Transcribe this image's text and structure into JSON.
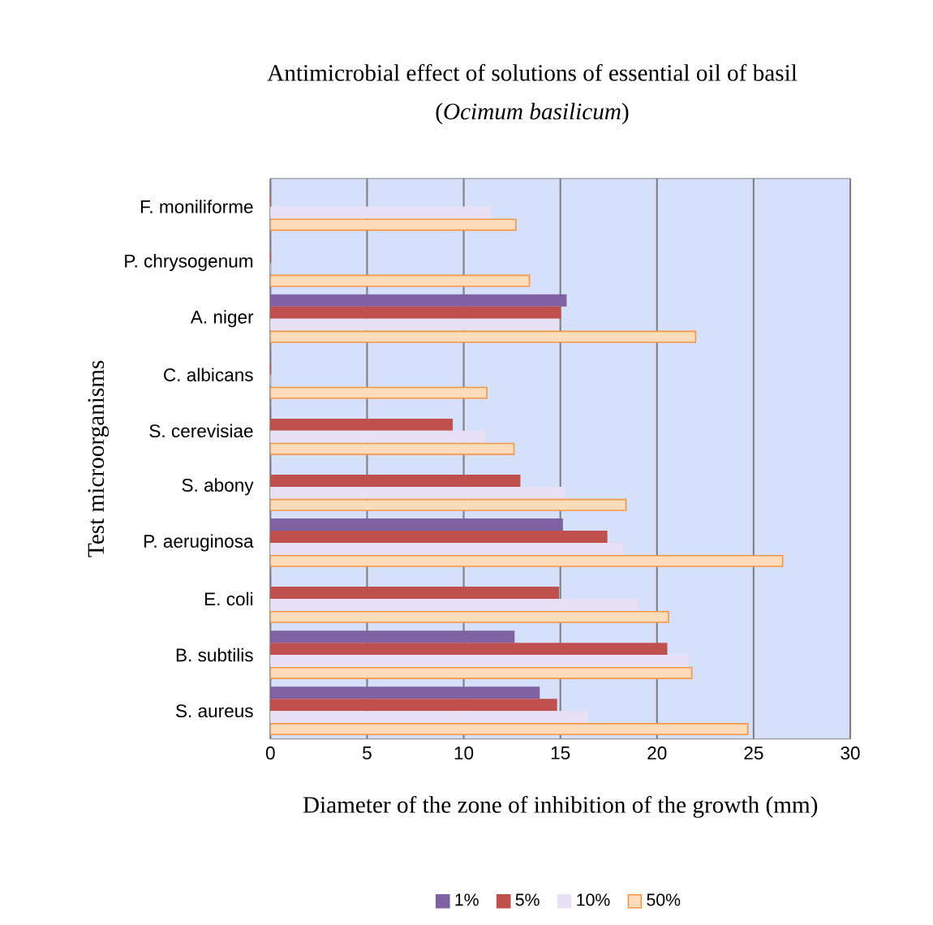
{
  "chart_data": {
    "type": "bar",
    "orientation": "horizontal",
    "title": "Antimicrobial effect of solutions of essential oil of basil",
    "subtitle": "(*Ocimum basilicum*)",
    "xlabel": "Diameter of the zone of inhibition of the growth (mm)",
    "ylabel": "Test microorganisms",
    "categories": [
      "F. moniliforme",
      "P. chrysogenum",
      "A. niger",
      "C. albicans",
      "S. cerevisiae",
      "S. abony",
      "P. aeruginosa",
      "E. coli",
      "B. subtilis",
      "S. aureus"
    ],
    "series": [
      {
        "name": "1%",
        "color": "#7e62a1",
        "values": [
          0,
          0,
          15.3,
          0,
          0,
          0,
          15.1,
          0,
          12.6,
          13.9
        ]
      },
      {
        "name": "5%",
        "color": "#c0504d",
        "values": [
          0,
          0,
          15.0,
          0,
          9.4,
          12.9,
          17.4,
          14.9,
          20.5,
          14.8
        ]
      },
      {
        "name": "10%",
        "color": "#e8e0f4",
        "values": [
          11.4,
          0,
          14.9,
          0,
          11.1,
          15.2,
          18.2,
          19.0,
          21.6,
          16.4
        ]
      },
      {
        "name": "50%",
        "color": "#fddcbc",
        "values": [
          12.7,
          13.4,
          22.0,
          11.2,
          12.6,
          18.4,
          26.5,
          20.6,
          21.8,
          24.7
        ]
      }
    ],
    "xlim": [
      0,
      30
    ],
    "xticks": [
      0,
      5,
      10,
      15,
      20,
      25,
      30
    ],
    "grid": "x",
    "legend": "bottom"
  }
}
